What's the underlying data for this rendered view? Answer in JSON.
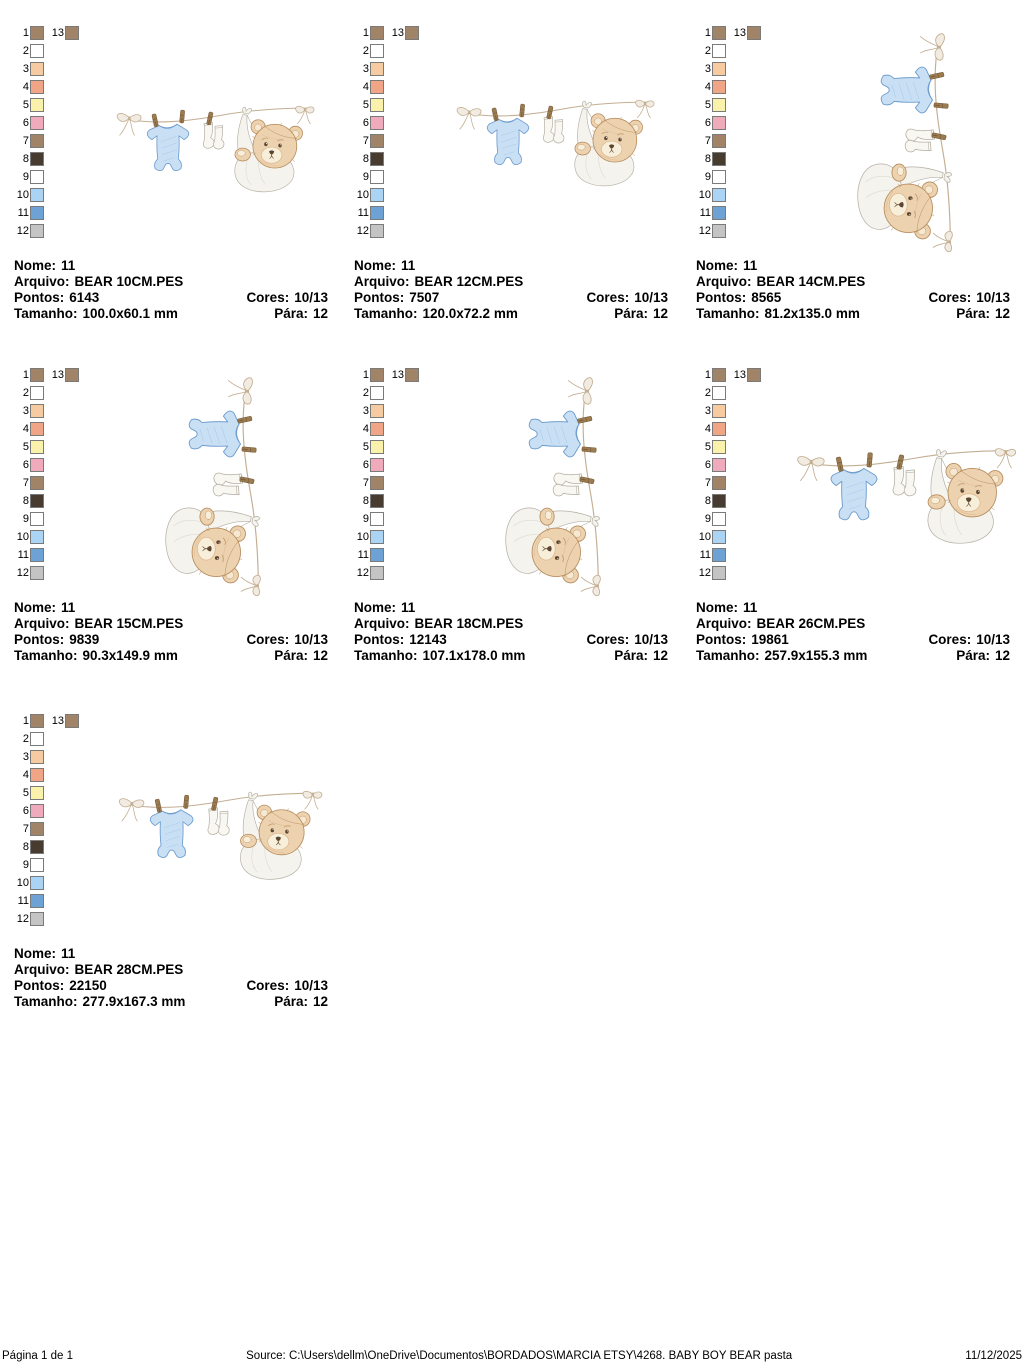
{
  "labels": {
    "nome": "Nome:",
    "arquivo": "Arquivo:",
    "pontos": "Pontos:",
    "cores": "Cores:",
    "tamanho": "Tamanho:",
    "para": "Pára:"
  },
  "palette": {
    "slots": [
      {
        "n": "1",
        "c": "#a18468"
      },
      {
        "n": "2",
        "c": "#ffffff"
      },
      {
        "n": "3",
        "c": "#f7cba1"
      },
      {
        "n": "4",
        "c": "#f0a586"
      },
      {
        "n": "5",
        "c": "#faf2ab"
      },
      {
        "n": "6",
        "c": "#efabbb"
      },
      {
        "n": "7",
        "c": "#a18468"
      },
      {
        "n": "8",
        "c": "#483c31"
      },
      {
        "n": "9",
        "c": "#ffffff"
      },
      {
        "n": "10",
        "c": "#abd3f4"
      },
      {
        "n": "11",
        "c": "#6ea2d4"
      },
      {
        "n": "12",
        "c": "#c4c4c4"
      }
    ],
    "extra": {
      "n": "13",
      "c": "#a18468"
    }
  },
  "designs": [
    {
      "nome": "11",
      "arquivo": "BEAR 10CM.PES",
      "pontos": "6143",
      "cores": "10/13",
      "tamanho": "100.0x60.1 mm",
      "para": "12",
      "orientation": "horizontal"
    },
    {
      "nome": "11",
      "arquivo": "BEAR 12CM.PES",
      "pontos": "7507",
      "cores": "10/13",
      "tamanho": "120.0x72.2 mm",
      "para": "12",
      "orientation": "horizontal"
    },
    {
      "nome": "11",
      "arquivo": "BEAR 14CM.PES",
      "pontos": "8565",
      "cores": "10/13",
      "tamanho": "81.2x135.0 mm",
      "para": "12",
      "orientation": "vertical"
    },
    {
      "nome": "11",
      "arquivo": "BEAR 15CM.PES",
      "pontos": "9839",
      "cores": "10/13",
      "tamanho": "90.3x149.9 mm",
      "para": "12",
      "orientation": "vertical"
    },
    {
      "nome": "11",
      "arquivo": "BEAR 18CM.PES",
      "pontos": "12143",
      "cores": "10/13",
      "tamanho": "107.1x178.0 mm",
      "para": "12",
      "orientation": "vertical"
    },
    {
      "nome": "11",
      "arquivo": "BEAR 26CM.PES",
      "pontos": "19861",
      "cores": "10/13",
      "tamanho": "257.9x155.3 mm",
      "para": "12",
      "orientation": "horizontal"
    },
    {
      "nome": "11",
      "arquivo": "BEAR 28CM.PES",
      "pontos": "22150",
      "cores": "10/13",
      "tamanho": "277.9x167.3 mm",
      "para": "12",
      "orientation": "horizontal"
    }
  ],
  "art_colors": {
    "rope": "#c3ae92",
    "bowFill": "#f1ebe1",
    "pin": "#9b7b50",
    "pinDark": "#6f5433",
    "onesieFill": "#c9e0f4",
    "onesieStroke": "#6d9cce",
    "onesieShade": "#a3c8ec",
    "sockFill": "#f8f7f2",
    "sockStroke": "#b5b0a4",
    "clothFill": "#f4f3ee",
    "clothStroke": "#b5b0a4",
    "clothShade": "#dcdad0",
    "bearFill": "#ecd2ae",
    "bearStroke": "#b78c5e",
    "bearShade": "#d9b088",
    "muzzle": "#f8efdb",
    "innerEar": "#f6e8d1",
    "dark": "#5d4630"
  },
  "footer": {
    "left": "Página 1 de 1",
    "center": "Source: C:\\Users\\dellm\\OneDrive\\Documentos\\BORDADOS\\MARCIA ETSY\\4268. BABY BOY BEAR pasta",
    "right": "11/12/2025"
  }
}
